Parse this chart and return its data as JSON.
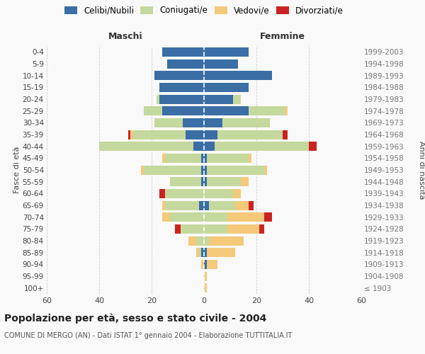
{
  "age_groups": [
    "100+",
    "95-99",
    "90-94",
    "85-89",
    "80-84",
    "75-79",
    "70-74",
    "65-69",
    "60-64",
    "55-59",
    "50-54",
    "45-49",
    "40-44",
    "35-39",
    "30-34",
    "25-29",
    "20-24",
    "15-19",
    "10-14",
    "5-9",
    "0-4"
  ],
  "birth_years": [
    "≤ 1903",
    "1904-1908",
    "1909-1913",
    "1914-1918",
    "1919-1923",
    "1924-1928",
    "1929-1933",
    "1934-1938",
    "1939-1943",
    "1944-1948",
    "1949-1953",
    "1954-1958",
    "1959-1963",
    "1964-1968",
    "1969-1973",
    "1974-1978",
    "1979-1983",
    "1984-1988",
    "1989-1993",
    "1994-1998",
    "1999-2003"
  ],
  "males": {
    "celibi": [
      0,
      0,
      0,
      1,
      0,
      0,
      0,
      2,
      0,
      1,
      1,
      1,
      4,
      7,
      8,
      16,
      17,
      17,
      19,
      14,
      16
    ],
    "coniugati": [
      0,
      0,
      0,
      1,
      3,
      9,
      13,
      13,
      15,
      12,
      22,
      14,
      36,
      20,
      11,
      7,
      1,
      0,
      0,
      0,
      0
    ],
    "vedovi": [
      0,
      0,
      1,
      1,
      3,
      0,
      3,
      1,
      0,
      0,
      1,
      1,
      0,
      1,
      0,
      0,
      0,
      0,
      0,
      0,
      0
    ],
    "divorziati": [
      0,
      0,
      0,
      0,
      0,
      2,
      0,
      0,
      2,
      0,
      0,
      0,
      0,
      1,
      0,
      0,
      0,
      0,
      0,
      0,
      0
    ]
  },
  "females": {
    "nubili": [
      0,
      0,
      1,
      1,
      0,
      0,
      0,
      2,
      0,
      1,
      1,
      1,
      4,
      5,
      7,
      17,
      11,
      17,
      26,
      13,
      17
    ],
    "coniugate": [
      0,
      0,
      0,
      0,
      2,
      9,
      9,
      10,
      11,
      13,
      22,
      16,
      36,
      25,
      18,
      14,
      3,
      0,
      0,
      0,
      0
    ],
    "vedove": [
      1,
      1,
      4,
      11,
      13,
      12,
      14,
      5,
      3,
      3,
      1,
      1,
      0,
      0,
      0,
      1,
      0,
      0,
      0,
      0,
      0
    ],
    "divorziate": [
      0,
      0,
      0,
      0,
      0,
      2,
      3,
      2,
      0,
      0,
      0,
      0,
      3,
      2,
      0,
      0,
      0,
      0,
      0,
      0,
      0
    ]
  },
  "colors": {
    "celibi_nubili": "#3a6ea5",
    "coniugati": "#c5d89d",
    "vedovi": "#f5c97a",
    "divorziati": "#cc2222"
  },
  "title": "Popolazione per età, sesso e stato civile - 2004",
  "subtitle": "COMUNE DI MERGO (AN) - Dati ISTAT 1° gennaio 2004 - Elaborazione TUTTITALIA.IT",
  "xlabel_maschi": "Maschi",
  "xlabel_femmine": "Femmine",
  "ylabel_left": "Fasce di età",
  "ylabel_right": "Anni di nascita",
  "xlim": 60,
  "background_color": "#f9f9f9",
  "grid_color": "#cccccc"
}
